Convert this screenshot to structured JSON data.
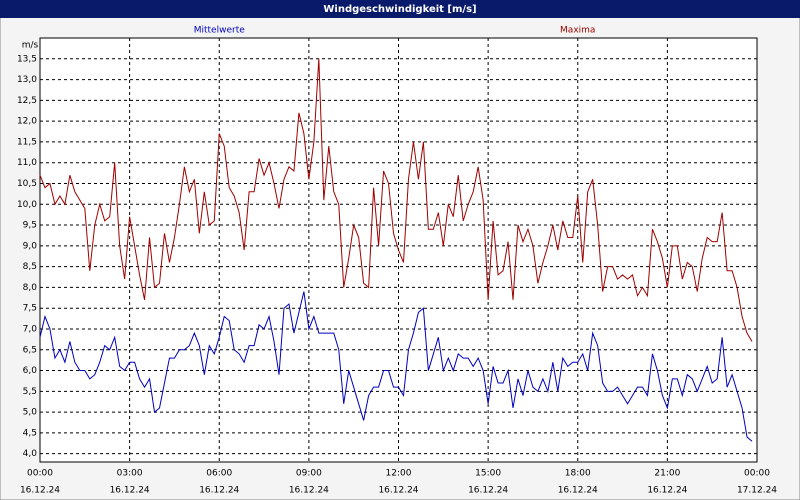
{
  "chart_data": {
    "type": "line",
    "title": "Windgeschwindigkeit [m/s]",
    "y_unit": "m/s",
    "x": [
      0,
      10,
      20,
      30,
      40,
      50,
      60,
      70,
      80,
      90,
      100,
      110,
      120,
      130,
      140,
      150,
      160,
      170,
      180,
      190,
      200,
      210,
      220,
      230,
      240,
      250,
      260,
      270,
      280,
      290,
      300,
      310,
      320,
      330,
      340,
      350,
      360,
      370,
      380,
      390,
      400,
      410,
      420,
      430,
      440,
      450,
      460,
      470,
      480,
      490,
      500,
      510,
      520,
      530,
      540,
      550,
      560,
      570,
      580,
      590,
      600,
      610,
      620,
      630,
      640,
      650,
      660,
      670,
      680,
      690,
      700,
      710,
      720,
      730,
      740,
      750,
      760,
      770,
      780,
      790,
      800,
      810,
      820,
      830,
      840,
      850,
      860,
      870,
      880,
      890,
      900,
      910,
      920,
      930,
      940,
      950,
      960,
      970,
      980,
      990,
      1000,
      1010,
      1020,
      1030,
      1040,
      1050,
      1060,
      1070,
      1080,
      1090,
      1100,
      1110,
      1120,
      1130,
      1140,
      1150,
      1160,
      1170,
      1180,
      1190,
      1200,
      1210,
      1220,
      1230,
      1240,
      1250,
      1260,
      1270,
      1280,
      1290,
      1300,
      1310,
      1320,
      1330,
      1340,
      1350,
      1360,
      1370,
      1380,
      1390,
      1400,
      1410,
      1420,
      1430
    ],
    "xlim": [
      0,
      1440
    ],
    "xticks": [
      {
        "value": 0,
        "label": "00:00"
      },
      {
        "value": 180,
        "label": "03:00"
      },
      {
        "value": 360,
        "label": "06:00"
      },
      {
        "value": 540,
        "label": "09:00"
      },
      {
        "value": 720,
        "label": "12:00"
      },
      {
        "value": 900,
        "label": "15:00"
      },
      {
        "value": 1080,
        "label": "18:00"
      },
      {
        "value": 1260,
        "label": "21:00"
      },
      {
        "value": 1440,
        "label": "00:00"
      }
    ],
    "xtick_dates": [
      "16.12.24",
      "16.12.24",
      "16.12.24",
      "16.12.24",
      "16.12.24",
      "16.12.24",
      "16.12.24",
      "16.12.24",
      "17.12.24"
    ],
    "ylim": [
      3.8,
      14.0
    ],
    "yticks": [
      {
        "value": 4,
        "label": "4,0"
      },
      {
        "value": 4.5,
        "label": "4,5"
      },
      {
        "value": 5,
        "label": "5,0"
      },
      {
        "value": 5.5,
        "label": "5,5"
      },
      {
        "value": 6,
        "label": "6,0"
      },
      {
        "value": 6.5,
        "label": "6,5"
      },
      {
        "value": 7,
        "label": "7,0"
      },
      {
        "value": 7.5,
        "label": "7,5"
      },
      {
        "value": 8,
        "label": "8,0"
      },
      {
        "value": 8.5,
        "label": "8,5"
      },
      {
        "value": 9,
        "label": "9,0"
      },
      {
        "value": 9.5,
        "label": "9,5"
      },
      {
        "value": 10,
        "label": "10,0"
      },
      {
        "value": 10.5,
        "label": "10,5"
      },
      {
        "value": 11,
        "label": "11,0"
      },
      {
        "value": 11.5,
        "label": "11,5"
      },
      {
        "value": 12,
        "label": "12,0"
      },
      {
        "value": 12.5,
        "label": "12,5"
      },
      {
        "value": 13,
        "label": "13,0"
      },
      {
        "value": 13.5,
        "label": "13,5"
      }
    ],
    "grid": true,
    "series": [
      {
        "name": "Mittelwerte",
        "color": "#0000c0",
        "values": [
          6.8,
          7.3,
          7.0,
          6.3,
          6.5,
          6.2,
          6.7,
          6.2,
          6.0,
          6.0,
          5.8,
          5.9,
          6.2,
          6.6,
          6.5,
          6.8,
          6.1,
          6.0,
          6.2,
          6.2,
          5.8,
          5.6,
          5.8,
          5.0,
          5.1,
          5.7,
          6.3,
          6.3,
          6.5,
          6.5,
          6.6,
          6.9,
          6.6,
          5.9,
          6.6,
          6.4,
          6.8,
          7.3,
          7.2,
          6.5,
          6.4,
          6.2,
          6.6,
          6.6,
          7.1,
          7.0,
          7.3,
          6.7,
          5.9,
          7.5,
          7.6,
          6.9,
          7.4,
          7.9,
          7.0,
          7.3,
          6.9,
          6.9,
          6.9,
          6.9,
          6.5,
          5.2,
          6.0,
          5.6,
          5.2,
          4.8,
          5.4,
          5.6,
          5.6,
          6.0,
          6.0,
          5.6,
          5.6,
          5.4,
          6.5,
          6.9,
          7.4,
          7.5,
          6.0,
          6.4,
          6.8,
          6.0,
          6.3,
          6.0,
          6.4,
          6.3,
          6.3,
          6.1,
          6.3,
          6.0,
          5.2,
          6.1,
          5.7,
          5.7,
          6.0,
          5.1,
          5.8,
          5.4,
          6.0,
          5.6,
          5.5,
          5.8,
          5.5,
          6.2,
          5.5,
          6.3,
          6.1,
          6.2,
          6.2,
          6.4,
          6.0,
          6.9,
          6.6,
          5.7,
          5.5,
          5.5,
          5.6,
          5.4,
          5.2,
          5.4,
          5.6,
          5.6,
          5.4,
          6.4,
          6.0,
          5.4,
          5.1,
          5.8,
          5.8,
          5.4,
          5.9,
          5.8,
          5.5,
          5.8,
          6.1,
          5.7,
          5.8,
          6.8,
          5.6,
          5.9,
          5.5,
          5.1,
          4.4,
          4.3
        ]
      },
      {
        "name": "Maxima",
        "color": "#a00000",
        "values": [
          10.7,
          10.4,
          10.5,
          10.0,
          10.2,
          10.0,
          10.7,
          10.3,
          10.1,
          9.9,
          8.4,
          9.5,
          10.0,
          9.6,
          9.7,
          11.0,
          9.0,
          8.2,
          9.7,
          9.0,
          8.3,
          7.7,
          9.2,
          8.0,
          8.1,
          9.3,
          8.6,
          9.2,
          10.0,
          10.9,
          10.3,
          10.6,
          9.3,
          10.3,
          9.5,
          9.6,
          11.7,
          11.4,
          10.4,
          10.2,
          9.8,
          8.9,
          10.3,
          10.3,
          11.1,
          10.7,
          11.0,
          10.5,
          9.9,
          10.6,
          10.9,
          10.8,
          12.2,
          11.7,
          10.6,
          11.5,
          13.5,
          10.1,
          11.4,
          10.3,
          10.0,
          8.0,
          8.7,
          9.5,
          9.2,
          8.1,
          8.0,
          10.4,
          9.0,
          10.8,
          10.5,
          9.3,
          8.9,
          8.6,
          10.6,
          11.5,
          10.6,
          11.5,
          9.4,
          9.4,
          9.8,
          9.0,
          10.0,
          9.7,
          10.7,
          9.6,
          10.0,
          10.3,
          10.9,
          10.1,
          7.7,
          9.6,
          8.3,
          8.4,
          9.1,
          7.7,
          9.5,
          9.1,
          9.4,
          9.0,
          8.1,
          8.6,
          9.0,
          9.5,
          8.9,
          9.6,
          9.2,
          9.2,
          10.2,
          8.6,
          10.3,
          10.6,
          9.5,
          7.9,
          8.5,
          8.5,
          8.2,
          8.3,
          8.2,
          8.3,
          7.8,
          8.0,
          7.8,
          9.4,
          9.1,
          8.7,
          8.0,
          9.0,
          9.0,
          8.2,
          8.6,
          8.5,
          7.9,
          8.7,
          9.2,
          9.1,
          9.1,
          9.8,
          8.4,
          8.4,
          8.0,
          7.3,
          6.9,
          6.7
        ]
      }
    ]
  }
}
